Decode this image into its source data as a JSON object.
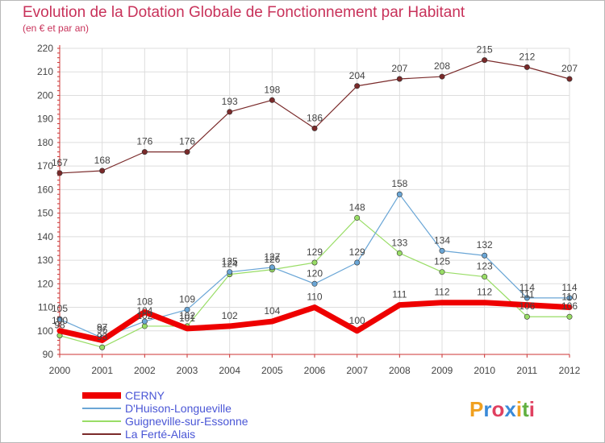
{
  "title": "Evolution de la Dotation Globale de Fonctionnement par Habitant",
  "subtitle": "(en € et par an)",
  "brand": "Proxiti",
  "colors": {
    "title": "#c8325a",
    "legend_text": "#4a56d6",
    "axis": "#cc3333",
    "grid": "#dddddd"
  },
  "chart_data": {
    "type": "line",
    "x": [
      "2000",
      "2001",
      "2002",
      "2003",
      "2004",
      "2005",
      "2006",
      "2007",
      "2008",
      "2009",
      "2010",
      "2011",
      "2012"
    ],
    "ylim": [
      90,
      220
    ],
    "yticks": [
      90,
      100,
      110,
      120,
      130,
      140,
      150,
      160,
      170,
      180,
      190,
      200,
      210,
      220
    ],
    "grid": true,
    "legend": "bottom-left",
    "series": [
      {
        "name": "CERNY",
        "color": "#ee0000",
        "width": 7,
        "values": [
          100,
          96,
          108,
          101,
          102,
          104,
          110,
          100,
          111,
          112,
          112,
          111,
          110
        ],
        "labels": [
          "100",
          "96",
          "108",
          "101",
          "102",
          "104",
          "110",
          "100",
          "111",
          "112",
          "112",
          "111",
          "110"
        ]
      },
      {
        "name": "D'Huison-Longueville",
        "color": "#6aa6d6",
        "width": 1.2,
        "values": [
          105,
          97,
          104,
          109,
          125,
          127,
          120,
          129,
          158,
          134,
          132,
          114,
          114
        ],
        "labels": [
          "105",
          "97",
          "104",
          "109",
          "125",
          "127",
          "120",
          "129",
          "158",
          "134",
          "132",
          "114",
          "114"
        ]
      },
      {
        "name": "Guigneville-sur-Essonne",
        "color": "#99dd66",
        "width": 1.2,
        "values": [
          98,
          93,
          102,
          102,
          124,
          126,
          129,
          148,
          133,
          125,
          123,
          106,
          106
        ],
        "labels": [
          "98",
          "93",
          "102",
          "102",
          "124",
          "126",
          "129",
          "148",
          "133",
          "125",
          "123",
          "106",
          "106"
        ]
      },
      {
        "name": "La Ferté-Alais",
        "color": "#7a2a2a",
        "width": 1.2,
        "values": [
          167,
          168,
          176,
          176,
          193,
          198,
          186,
          204,
          207,
          208,
          215,
          212,
          207
        ],
        "labels": [
          "167",
          "168",
          "176",
          "176",
          "193",
          "198",
          "186",
          "204",
          "207",
          "208",
          "215",
          "212",
          "207"
        ]
      }
    ]
  }
}
